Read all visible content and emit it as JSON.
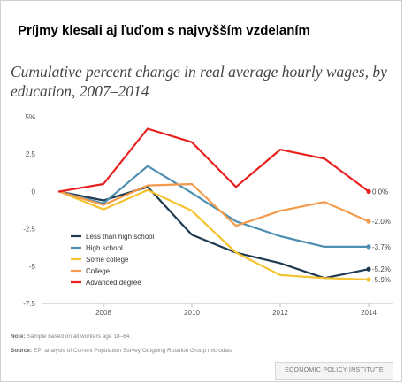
{
  "headline": "Príjmy klesali aj ľuďom s najvyšším vzdelaním",
  "note_label": "Note:",
  "note_text": "Sample based on all workers age 18–64.",
  "source_label": "Source:",
  "source_text": "EPI analysis of Current Population Survey Outgoing Rotation Group microdata",
  "brand": "ECONOMIC POLICY INSTITUTE",
  "chart_data": {
    "type": "line",
    "title": "Cumulative percent change in real average hourly wages, by education, 2007–2014",
    "x": [
      2007,
      2008,
      2009,
      2010,
      2011,
      2012,
      2013,
      2014
    ],
    "x_ticks": [
      2008,
      2010,
      2012,
      2014
    ],
    "y_ticks": [
      5,
      2.5,
      0,
      -2.5,
      -5,
      -7.5
    ],
    "y_tick_labels": [
      "5%",
      "2.5",
      "0",
      "-2.5",
      "-5",
      "-7.5"
    ],
    "ylim": [
      -7.5,
      5
    ],
    "xlim": [
      2006.5,
      2014.3
    ],
    "grid": false,
    "legend_position": "bottom-left",
    "series": [
      {
        "name": "Less than high school",
        "color": "#1d3a52",
        "values": [
          0,
          -0.6,
          0.3,
          -2.9,
          -4.1,
          -4.8,
          -5.8,
          -5.2
        ],
        "end_label": "-5.2%"
      },
      {
        "name": "High school",
        "color": "#4c8fb0",
        "values": [
          0,
          -0.8,
          1.7,
          -0.1,
          -2.0,
          -3.0,
          -3.7,
          -3.7
        ],
        "end_label": "-3.7%"
      },
      {
        "name": "Some college",
        "color": "#f5c330",
        "values": [
          0,
          -1.2,
          0.1,
          -1.3,
          -4.1,
          -5.6,
          -5.8,
          -5.9
        ],
        "end_label": "-5.9%"
      },
      {
        "name": "College",
        "color": "#f39a4c",
        "values": [
          0,
          -0.9,
          0.4,
          0.5,
          -2.3,
          -1.3,
          -0.7,
          -2.0
        ],
        "end_label": "-2.0%"
      },
      {
        "name": "Advanced degree",
        "color": "#e8201e",
        "values": [
          0,
          0.5,
          4.2,
          3.3,
          0.3,
          2.8,
          2.2,
          0.0
        ],
        "end_label": "0.0%"
      }
    ]
  }
}
